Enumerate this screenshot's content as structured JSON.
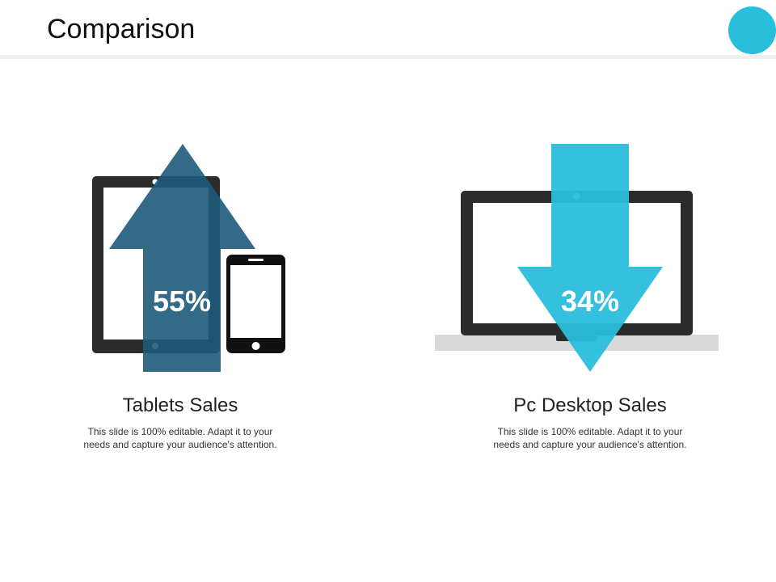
{
  "slide": {
    "title": "Comparison",
    "accent_color": "#29bedc"
  },
  "items": [
    {
      "heading": "Tablets Sales",
      "percent": "55%",
      "direction": "up",
      "arrow_color": "#1d5a7a",
      "description_line1": "This slide is 100% editable. Adapt it to your",
      "description_line2": "needs and capture your audience's attention.",
      "icons": [
        "tablet-icon",
        "smartphone-icon",
        "arrow-up-icon"
      ]
    },
    {
      "heading": "Pc Desktop Sales",
      "percent": "34%",
      "direction": "down",
      "arrow_color": "#29bedc",
      "description_line1": "This slide is 100% editable. Adapt it to your",
      "description_line2": "needs and capture your audience's attention.",
      "icons": [
        "laptop-icon",
        "arrow-down-icon"
      ]
    }
  ]
}
